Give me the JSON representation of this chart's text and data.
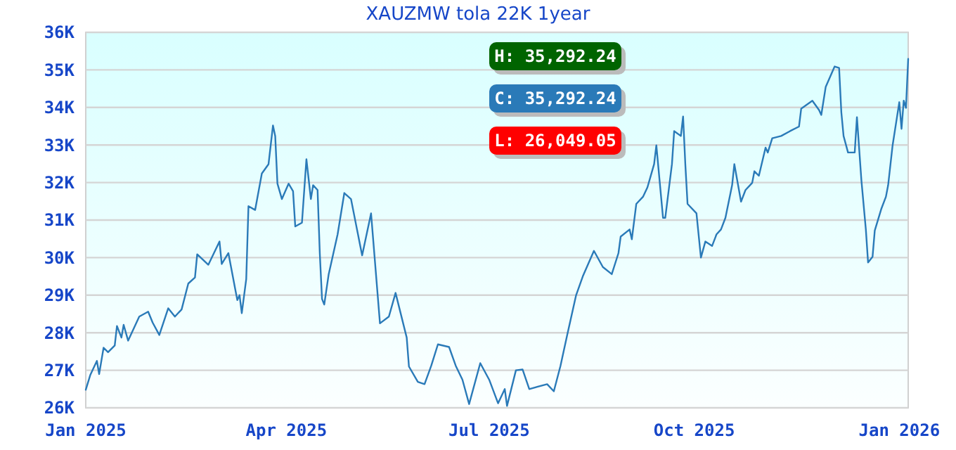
{
  "chart_data": {
    "type": "line",
    "title": "XAUZMW tola 22K 1year",
    "x": [
      "2025-01-01",
      "2025-01-03",
      "2025-01-06",
      "2025-01-07",
      "2025-01-09",
      "2025-01-11",
      "2025-01-14",
      "2025-01-15",
      "2025-01-17",
      "2025-01-18",
      "2025-01-20",
      "2025-01-25",
      "2025-01-29",
      "2025-01-31",
      "2025-02-03",
      "2025-02-07",
      "2025-02-10",
      "2025-02-13",
      "2025-02-16",
      "2025-02-19",
      "2025-02-20",
      "2025-02-25",
      "2025-03-02",
      "2025-03-03",
      "2025-03-06",
      "2025-03-09",
      "2025-03-10",
      "2025-03-11",
      "2025-03-12",
      "2025-03-14",
      "2025-03-15",
      "2025-03-18",
      "2025-03-21",
      "2025-03-24",
      "2025-03-26",
      "2025-03-27",
      "2025-03-28",
      "2025-03-30",
      "2025-04-02",
      "2025-04-04",
      "2025-04-05",
      "2025-04-08",
      "2025-04-10",
      "2025-04-12",
      "2025-04-13",
      "2025-04-15",
      "2025-04-16",
      "2025-04-17",
      "2025-04-18",
      "2025-04-20",
      "2025-04-24",
      "2025-04-27",
      "2025-04-30",
      "2025-05-05",
      "2025-05-09",
      "2025-05-13",
      "2025-05-17",
      "2025-05-20",
      "2025-05-25",
      "2025-05-26",
      "2025-05-30",
      "2025-06-02",
      "2025-06-05",
      "2025-06-08",
      "2025-06-13",
      "2025-06-16",
      "2025-06-19",
      "2025-06-22",
      "2025-06-27",
      "2025-07-01",
      "2025-07-05",
      "2025-07-08",
      "2025-07-09",
      "2025-07-13",
      "2025-07-16",
      "2025-07-19",
      "2025-07-27",
      "2025-07-30",
      "2025-08-02",
      "2025-08-05",
      "2025-08-09",
      "2025-08-12",
      "2025-08-17",
      "2025-08-21",
      "2025-08-25",
      "2025-08-28",
      "2025-08-29",
      "2025-09-02",
      "2025-09-03",
      "2025-09-05",
      "2025-09-08",
      "2025-09-10",
      "2025-09-13",
      "2025-09-14",
      "2025-09-17",
      "2025-09-18",
      "2025-09-21",
      "2025-09-22",
      "2025-09-25",
      "2025-09-26",
      "2025-09-27",
      "2025-09-28",
      "2025-10-02",
      "2025-10-04",
      "2025-10-06",
      "2025-10-09",
      "2025-10-11",
      "2025-10-13",
      "2025-10-15",
      "2025-10-18",
      "2025-10-19",
      "2025-10-22",
      "2025-10-24",
      "2025-10-27",
      "2025-10-28",
      "2025-10-30",
      "2025-11-02",
      "2025-11-03",
      "2025-11-05",
      "2025-11-09",
      "2025-11-13",
      "2025-11-17",
      "2025-11-18",
      "2025-11-23",
      "2025-11-26",
      "2025-11-27",
      "2025-11-29",
      "2025-12-03",
      "2025-12-05",
      "2025-12-06",
      "2025-12-07",
      "2025-12-09",
      "2025-12-12",
      "2025-12-13",
      "2025-12-15",
      "2025-12-17",
      "2025-12-18",
      "2025-12-20",
      "2025-12-21",
      "2025-12-24",
      "2025-12-26",
      "2025-12-27",
      "2025-12-29",
      "2026-01-01",
      "2026-01-02",
      "2026-01-03",
      "2026-01-04",
      "2026-01-05"
    ],
    "series": [
      {
        "color": "#2a7ab8",
        "values": [
          26480,
          26870,
          27250,
          26900,
          27600,
          27480,
          27660,
          28180,
          27870,
          28210,
          27790,
          28430,
          28560,
          28270,
          27940,
          28650,
          28430,
          28620,
          29310,
          29470,
          30090,
          29810,
          30430,
          29830,
          30120,
          29180,
          28870,
          29000,
          28520,
          29430,
          31370,
          31270,
          32240,
          32490,
          33520,
          33240,
          31970,
          31560,
          31970,
          31770,
          30830,
          30930,
          32620,
          31560,
          31930,
          31800,
          30120,
          28900,
          28750,
          29560,
          30620,
          31720,
          31560,
          30060,
          31180,
          28250,
          28430,
          29060,
          27870,
          27100,
          26690,
          26630,
          27120,
          27690,
          27620,
          27120,
          26750,
          26100,
          27190,
          26750,
          26120,
          26500,
          26049.05,
          27000,
          27020,
          26500,
          26630,
          26440,
          27120,
          27940,
          29000,
          29500,
          30180,
          29750,
          29560,
          30120,
          30560,
          30750,
          30490,
          31430,
          31620,
          31870,
          32490,
          32990,
          31060,
          31060,
          32490,
          33370,
          33240,
          33760,
          32490,
          31430,
          31180,
          30000,
          30430,
          30310,
          30620,
          30750,
          31060,
          31930,
          32490,
          31490,
          31800,
          31990,
          32300,
          32180,
          32930,
          32800,
          33180,
          33240,
          33370,
          33490,
          33970,
          34180,
          33930,
          33800,
          34550,
          35090,
          35050,
          33870,
          33240,
          32800,
          32800,
          33740,
          32060,
          30750,
          29870,
          30020,
          30720,
          31310,
          31620,
          31930,
          32990,
          34140,
          33430,
          34180,
          33990,
          35292.24
        ]
      }
    ],
    "xlim": [
      "2025-01-01",
      "2026-01-05"
    ],
    "xticks": [
      {
        "value": "2025-01-01",
        "label": "Jan 2025"
      },
      {
        "value": "2025-04-01",
        "label": "Apr 2025"
      },
      {
        "value": "2025-07-01",
        "label": "Jul 2025"
      },
      {
        "value": "2025-10-01",
        "label": "Oct 2025"
      },
      {
        "value": "2026-01-01",
        "label": "Jan 2026"
      }
    ],
    "ylim": [
      26000,
      36000
    ],
    "yticks": [
      {
        "value": 26000,
        "label": "26K"
      },
      {
        "value": 27000,
        "label": "27K"
      },
      {
        "value": 28000,
        "label": "28K"
      },
      {
        "value": 29000,
        "label": "29K"
      },
      {
        "value": 30000,
        "label": "30K"
      },
      {
        "value": 31000,
        "label": "31K"
      },
      {
        "value": 32000,
        "label": "32K"
      },
      {
        "value": 33000,
        "label": "33K"
      },
      {
        "value": 34000,
        "label": "34K"
      },
      {
        "value": 35000,
        "label": "35K"
      },
      {
        "value": 36000,
        "label": "36K"
      }
    ],
    "grid": "y",
    "marker": "none",
    "line_style": "solid",
    "annotations": [
      "H: 35,292.24",
      "C: 35,292.24",
      "L: 26,049.05"
    ]
  }
}
